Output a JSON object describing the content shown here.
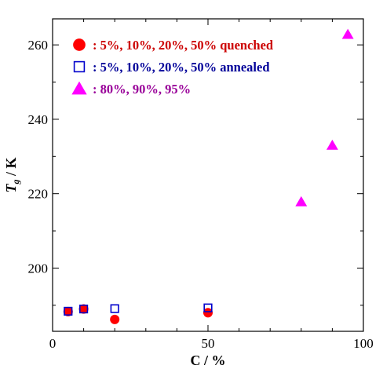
{
  "chart_data": {
    "type": "scatter",
    "xlabel": "C / %",
    "ylabel_symbol": "T",
    "ylabel_sub": "g",
    "ylabel_unit": " / K",
    "xlim": [
      0,
      100
    ],
    "ylim": [
      183,
      267
    ],
    "x_ticks": [
      0,
      50,
      100
    ],
    "x_tick_labels": [
      "0",
      "50",
      "100"
    ],
    "y_ticks": [
      200,
      220,
      240,
      260
    ],
    "y_tick_labels": [
      "200",
      "220",
      "240",
      "260"
    ],
    "grid": false,
    "legend_position": "top-left",
    "series": [
      {
        "name": ": 5%, 10%, 20%, 50% quenched",
        "marker": "circle-filled",
        "color": "#ff0000",
        "text_color": "#cc0000",
        "points": [
          [
            5,
            188.3
          ],
          [
            10,
            189
          ],
          [
            20,
            186.2
          ],
          [
            50,
            188
          ]
        ]
      },
      {
        "name": ": 5%, 10%, 20%, 50% annealed",
        "marker": "square-open",
        "color": "#0000cc",
        "text_color": "#000099",
        "points": [
          [
            5,
            188.4
          ],
          [
            10,
            189
          ],
          [
            20,
            189.1
          ],
          [
            50,
            189.3
          ]
        ]
      },
      {
        "name": ": 80%, 90%, 95%",
        "marker": "triangle-filled",
        "color": "#ff00ff",
        "text_color": "#990099",
        "points": [
          [
            80,
            217.8
          ],
          [
            90,
            233
          ],
          [
            95,
            262.8
          ]
        ]
      }
    ]
  }
}
